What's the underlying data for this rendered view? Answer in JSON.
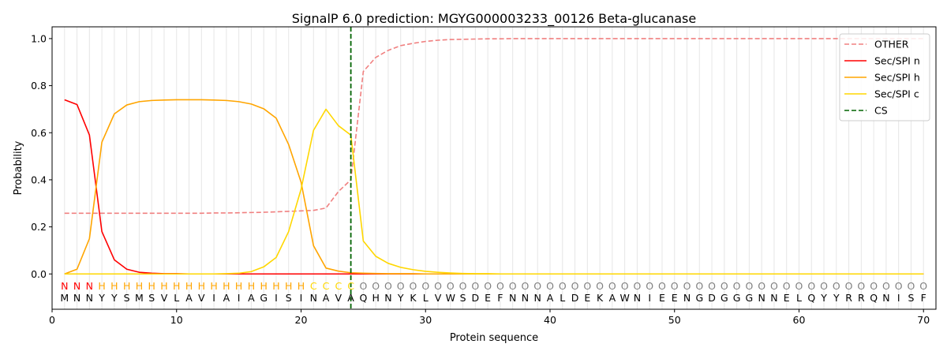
{
  "chart_data": {
    "type": "line",
    "title": "SignalP 6.0 prediction: MGYG000003233_00126 Beta-glucanase",
    "xlabel": "Protein sequence",
    "ylabel": "Probability",
    "xlim": [
      0,
      71
    ],
    "ylim": [
      -0.15,
      1.05
    ],
    "xticks": [
      0,
      10,
      20,
      30,
      40,
      50,
      60,
      70
    ],
    "yticks": [
      0.0,
      0.2,
      0.4,
      0.6,
      0.8,
      1.0
    ],
    "ytick_labels": [
      "0.0",
      "0.2",
      "0.4",
      "0.6",
      "0.8",
      "1.0"
    ],
    "grid": "vertical lines at each residue",
    "legend_position": "top-right",
    "sequence": [
      "M",
      "N",
      "N",
      "Y",
      "Y",
      "S",
      "M",
      "S",
      "V",
      "L",
      "A",
      "V",
      "I",
      "A",
      "I",
      "A",
      "G",
      "I",
      "S",
      "I",
      "N",
      "A",
      "V",
      "A",
      "Q",
      "H",
      "N",
      "Y",
      "K",
      "L",
      "V",
      "W",
      "S",
      "D",
      "E",
      "F",
      "N",
      "N",
      "N",
      "A",
      "L",
      "D",
      "E",
      "K",
      "A",
      "W",
      "N",
      "I",
      "E",
      "E",
      "N",
      "G",
      "D",
      "G",
      "G",
      "G",
      "N",
      "N",
      "E",
      "L",
      "Q",
      "Y",
      "Y",
      "R",
      "R",
      "Q",
      "N",
      "I",
      "S",
      "F"
    ],
    "labels": [
      "N",
      "N",
      "N",
      "H",
      "H",
      "H",
      "H",
      "H",
      "H",
      "H",
      "H",
      "H",
      "H",
      "H",
      "H",
      "H",
      "H",
      "H",
      "H",
      "H",
      "C",
      "C",
      "C",
      "C",
      "O",
      "O",
      "O",
      "O",
      "O",
      "O",
      "O",
      "O",
      "O",
      "O",
      "O",
      "O",
      "O",
      "O",
      "O",
      "O",
      "O",
      "O",
      "O",
      "O",
      "O",
      "O",
      "O",
      "O",
      "O",
      "O",
      "O",
      "O",
      "O",
      "O",
      "O",
      "O",
      "O",
      "O",
      "O",
      "O",
      "O",
      "O",
      "O",
      "O",
      "O",
      "O",
      "O",
      "O",
      "O",
      "O"
    ],
    "label_colors": {
      "N": "#ff0000",
      "H": "#ffa500",
      "C": "#ffd700",
      "O": "#808080"
    },
    "cs_position": 24,
    "x": [
      1,
      2,
      3,
      4,
      5,
      6,
      7,
      8,
      9,
      10,
      11,
      12,
      13,
      14,
      15,
      16,
      17,
      18,
      19,
      20,
      21,
      22,
      23,
      24,
      25,
      26,
      27,
      28,
      29,
      30,
      31,
      32,
      33,
      34,
      35,
      36,
      37,
      38,
      39,
      40,
      41,
      42,
      43,
      44,
      45,
      46,
      47,
      48,
      49,
      50,
      51,
      52,
      53,
      54,
      55,
      56,
      57,
      58,
      59,
      60,
      61,
      62,
      63,
      64,
      65,
      66,
      67,
      68,
      69,
      70
    ],
    "series": [
      {
        "name": "OTHER",
        "color": "#f08080",
        "style": "dashed",
        "values": [
          0.258,
          0.258,
          0.258,
          0.258,
          0.258,
          0.258,
          0.258,
          0.258,
          0.258,
          0.258,
          0.258,
          0.258,
          0.259,
          0.259,
          0.26,
          0.261,
          0.262,
          0.264,
          0.266,
          0.268,
          0.27,
          0.28,
          0.35,
          0.4,
          0.86,
          0.92,
          0.95,
          0.97,
          0.98,
          0.988,
          0.993,
          0.996,
          0.997,
          0.998,
          0.999,
          0.999,
          1.0,
          1.0,
          1.0,
          1.0,
          1.0,
          1.0,
          1.0,
          1.0,
          1.0,
          1.0,
          1.0,
          1.0,
          1.0,
          1.0,
          1.0,
          1.0,
          1.0,
          1.0,
          1.0,
          1.0,
          1.0,
          1.0,
          1.0,
          1.0,
          1.0,
          1.0,
          1.0,
          1.0,
          1.0,
          1.0,
          1.0,
          1.0,
          1.0,
          1.0
        ]
      },
      {
        "name": "Sec/SPI n",
        "color": "#ff0000",
        "style": "solid",
        "values": [
          0.74,
          0.72,
          0.59,
          0.18,
          0.06,
          0.02,
          0.007,
          0.003,
          0.001,
          0.001,
          0.0,
          0.0,
          0.0,
          0.0,
          0.0,
          0.0,
          0.0,
          0.0,
          0.0,
          0.0,
          0.0,
          0.0,
          0.0,
          0.0,
          0.0,
          0.0,
          0.0,
          0.0,
          0.0,
          0.0,
          0.0,
          0.0,
          0.0,
          0.0,
          0.0,
          0.0,
          0.0,
          0.0,
          0.0,
          0.0,
          0.0,
          0.0,
          0.0,
          0.0,
          0.0,
          0.0,
          0.0,
          0.0,
          0.0,
          0.0,
          0.0,
          0.0,
          0.0,
          0.0,
          0.0,
          0.0,
          0.0,
          0.0,
          0.0,
          0.0,
          0.0,
          0.0,
          0.0,
          0.0,
          0.0,
          0.0,
          0.0,
          0.0,
          0.0,
          0.0
        ]
      },
      {
        "name": "Sec/SPI h",
        "color": "#ffa500",
        "style": "solid",
        "values": [
          0.0,
          0.02,
          0.15,
          0.56,
          0.68,
          0.718,
          0.732,
          0.737,
          0.739,
          0.74,
          0.74,
          0.74,
          0.739,
          0.737,
          0.732,
          0.722,
          0.702,
          0.662,
          0.55,
          0.39,
          0.12,
          0.025,
          0.012,
          0.005,
          0.003,
          0.002,
          0.001,
          0.001,
          0.001,
          0.0,
          0.0,
          0.0,
          0.0,
          0.0,
          0.0,
          0.0,
          0.0,
          0.0,
          0.0,
          0.0,
          0.0,
          0.0,
          0.0,
          0.0,
          0.0,
          0.0,
          0.0,
          0.0,
          0.0,
          0.0,
          0.0,
          0.0,
          0.0,
          0.0,
          0.0,
          0.0,
          0.0,
          0.0,
          0.0,
          0.0,
          0.0,
          0.0,
          0.0,
          0.0,
          0.0,
          0.0,
          0.0,
          0.0,
          0.0,
          0.0
        ]
      },
      {
        "name": "Sec/SPI c",
        "color": "#ffd700",
        "style": "solid",
        "values": [
          0.0,
          0.0,
          0.0,
          0.0,
          0.0,
          0.0,
          0.0,
          0.0,
          0.0,
          0.0,
          0.0,
          0.0,
          0.0,
          0.001,
          0.003,
          0.01,
          0.03,
          0.07,
          0.18,
          0.36,
          0.61,
          0.7,
          0.63,
          0.59,
          0.14,
          0.075,
          0.045,
          0.028,
          0.018,
          0.011,
          0.007,
          0.004,
          0.002,
          0.001,
          0.001,
          0.0,
          0.0,
          0.0,
          0.0,
          0.0,
          0.0,
          0.0,
          0.0,
          0.0,
          0.0,
          0.0,
          0.0,
          0.0,
          0.0,
          0.0,
          0.0,
          0.0,
          0.0,
          0.0,
          0.0,
          0.0,
          0.0,
          0.0,
          0.0,
          0.0,
          0.0,
          0.0,
          0.0,
          0.0,
          0.0,
          0.0,
          0.0,
          0.0,
          0.0,
          0.0
        ]
      }
    ],
    "cs_line": {
      "name": "CS",
      "color": "#006400",
      "style": "dashed"
    }
  }
}
